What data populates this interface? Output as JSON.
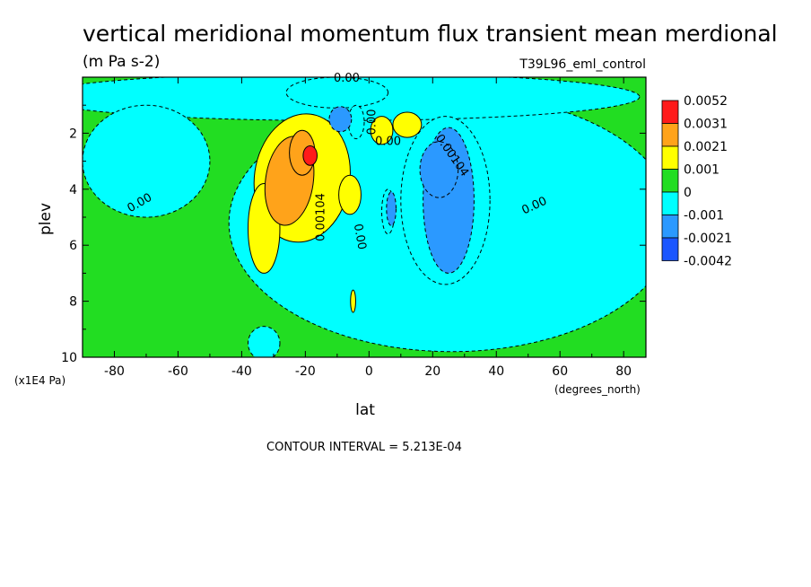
{
  "chart_data": {
    "type": "heatmap",
    "title": "vertical meridional momentum flux transient mean merdional",
    "units": "(m Pa s-2)",
    "run_label": "T39L96_eml_control",
    "xlabel": "lat",
    "xunits": "(degrees_north)",
    "ylabel": "plev",
    "yunits": "(x1E4 Pa)",
    "xlim": [
      -90,
      87
    ],
    "ylim": [
      0,
      10
    ],
    "y_inverted": true,
    "x_ticks": [
      -80,
      -60,
      -40,
      -20,
      0,
      20,
      40,
      60,
      80
    ],
    "x_tick_labels": [
      "-80",
      "-60",
      "-40",
      "-20",
      "0",
      "20",
      "40",
      "60",
      "80"
    ],
    "y_ticks": [
      2,
      4,
      6,
      8,
      10
    ],
    "y_tick_labels": [
      "2",
      "4",
      "6",
      "8",
      "10"
    ],
    "contour_interval": "CONTOUR INTERVAL = 5.213E-04",
    "legend_position": "right",
    "legend": {
      "labels": [
        "0.0052",
        "0.0031",
        "0.0021",
        "0.001",
        "0",
        "-0.001",
        "-0.0021",
        "-0.0042"
      ],
      "colors": [
        "#ff1a1a",
        "#ffa31a",
        "#ffff00",
        "#22dd22",
        "#00ffff",
        "#2b99ff",
        "#1a56ff"
      ]
    },
    "contour_labels": [
      {
        "text": "0.00",
        "lat": -7,
        "plev": 0.05,
        "rotate": 0
      },
      {
        "text": "0.00",
        "lat": 1,
        "plev": 1.6,
        "rotate": -90
      },
      {
        "text": "0.00",
        "lat": 6,
        "plev": 2.3,
        "rotate": 0
      },
      {
        "text": "0.00104",
        "lat": 26,
        "plev": 2.8,
        "rotate": 55
      },
      {
        "text": "0.00",
        "lat": -72,
        "plev": 4.5,
        "rotate": -30
      },
      {
        "text": "0.00104",
        "lat": -15,
        "plev": 5.0,
        "rotate": -90
      },
      {
        "text": "0.00",
        "lat": -3,
        "plev": 5.7,
        "rotate": 80
      },
      {
        "text": "0.00",
        "lat": 52,
        "plev": 4.6,
        "rotate": -25
      }
    ],
    "regions": [
      {
        "level": 1,
        "lat": -21,
        "plev": 3.6,
        "rlat": 15,
        "rplev": 2.3,
        "rotate": 8
      },
      {
        "level": 1,
        "lat": -33,
        "plev": 5.4,
        "rlat": 5,
        "rplev": 1.6
      },
      {
        "level": 1,
        "lat": -6,
        "plev": 4.2,
        "rlat": 3.5,
        "rplev": 0.7
      },
      {
        "level": 1,
        "lat": 4,
        "plev": 1.9,
        "rlat": 3.5,
        "rplev": 0.5
      },
      {
        "level": 1,
        "lat": 12,
        "plev": 1.7,
        "rlat": 4.5,
        "rplev": 0.45
      },
      {
        "level": 1,
        "lat": -5,
        "plev": 8.0,
        "rlat": 0.8,
        "rplev": 0.4
      },
      {
        "level": 2,
        "lat": -25,
        "plev": 3.7,
        "rlat": 7.5,
        "rplev": 1.6,
        "rotate": 8
      },
      {
        "level": 2,
        "lat": -21,
        "plev": 2.7,
        "rlat": 4,
        "rplev": 0.8
      },
      {
        "level": 3,
        "lat": -18.5,
        "plev": 2.8,
        "rlat": 2.2,
        "rplev": 0.35
      },
      {
        "level": -1,
        "lat": 24,
        "plev": 4.4,
        "rlat": 14,
        "rplev": 3.0
      },
      {
        "level": -1,
        "lat": -10,
        "plev": 0.55,
        "rlat": 16,
        "rplev": 0.55
      },
      {
        "level": -1,
        "lat": 6,
        "plev": 4.8,
        "rlat": 2,
        "rplev": 0.8
      },
      {
        "level": -1,
        "lat": -4,
        "plev": 1.6,
        "rlat": 2.5,
        "rplev": 0.6
      },
      {
        "level": -2,
        "lat": 25,
        "plev": 4.4,
        "rlat": 8,
        "rplev": 2.6
      },
      {
        "level": -2,
        "lat": 22,
        "plev": 3.3,
        "rlat": 6,
        "rplev": 1.0
      },
      {
        "level": -2,
        "lat": -9,
        "plev": 1.5,
        "rlat": 3.5,
        "rplev": 0.45
      },
      {
        "level": -2,
        "lat": 7,
        "plev": 4.7,
        "rlat": 1.5,
        "rplev": 0.6
      }
    ],
    "cyan_background_regions": [
      {
        "lat": 26,
        "plev": 5.2,
        "rlat": 70,
        "rplev": 4.6
      },
      {
        "lat": -10,
        "plev": 0.7,
        "rlat": 95,
        "rplev": 0.85
      },
      {
        "lat": -33,
        "plev": 9.5,
        "rlat": 5,
        "rplev": 0.6
      },
      {
        "lat": -70,
        "plev": 3.0,
        "rlat": 20,
        "rplev": 2.0
      }
    ]
  }
}
